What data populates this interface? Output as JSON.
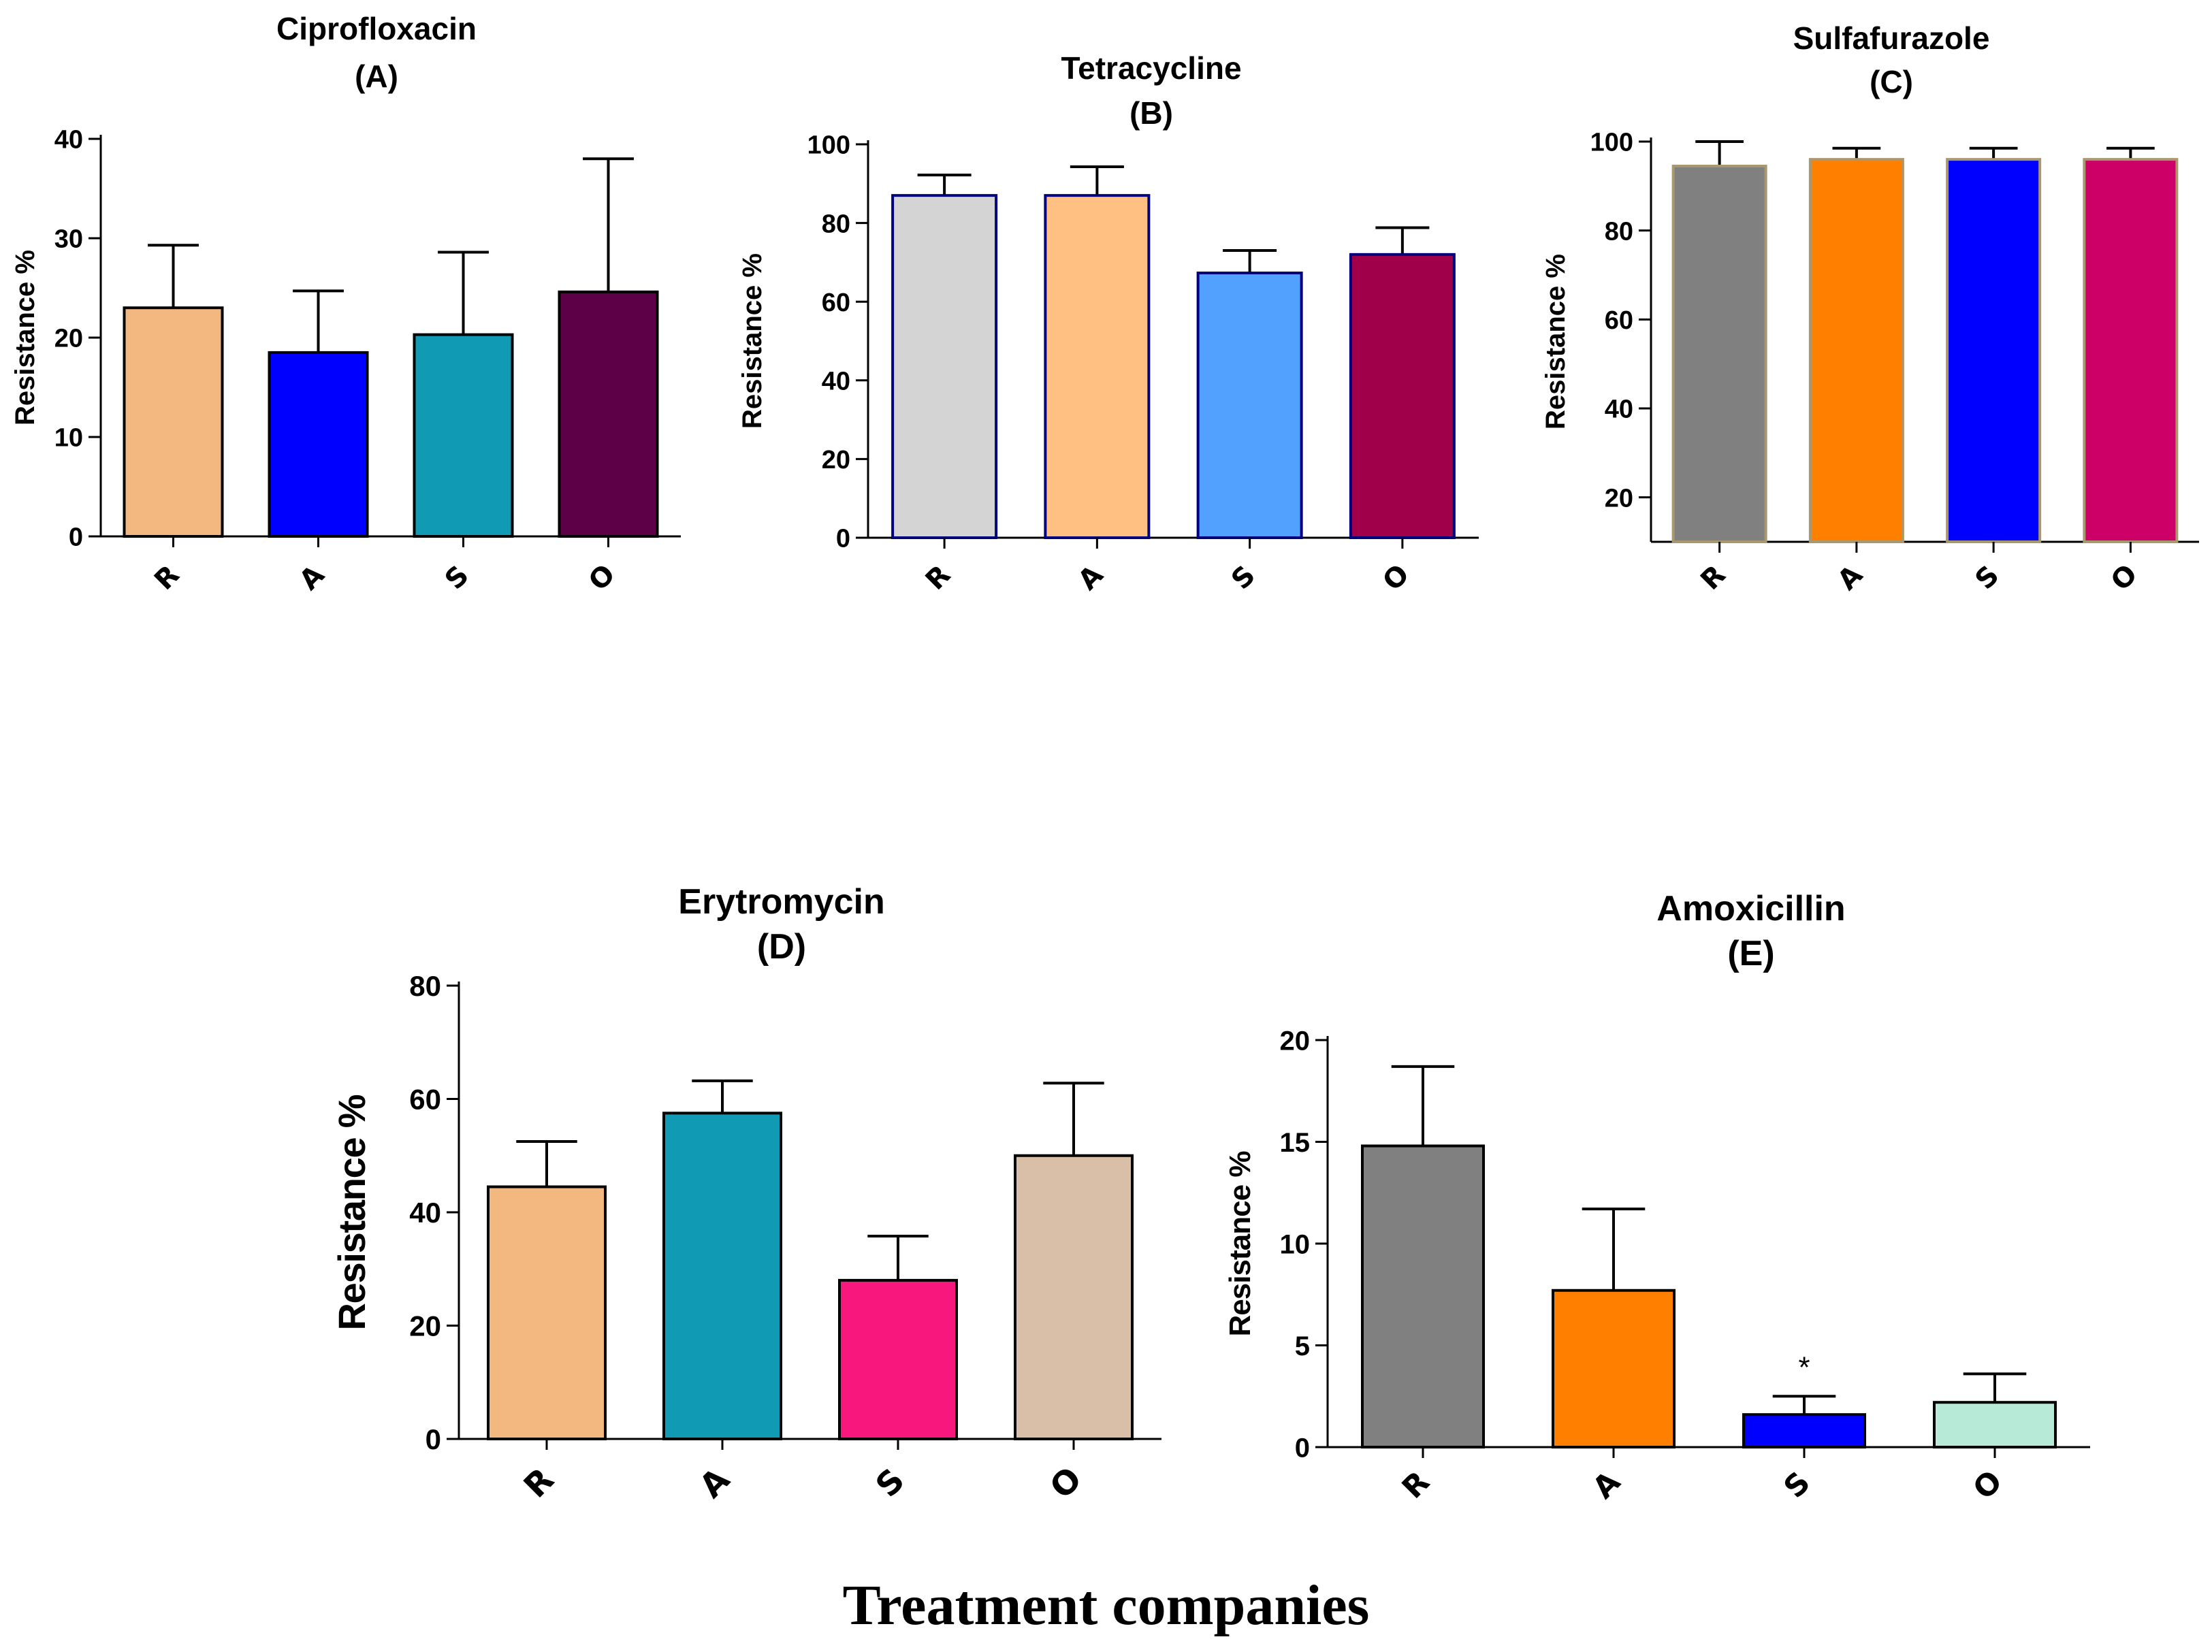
{
  "figure": {
    "xlabel": "Treatment companies"
  },
  "chart_data": [
    {
      "type": "bar",
      "title": "Ciprofloxacin",
      "subtitle": "(A)",
      "ylabel": "Resistance %",
      "xlabel": "",
      "categories": [
        "R",
        "A",
        "S",
        "O"
      ],
      "values": [
        23,
        18.5,
        20.3,
        24.6
      ],
      "errors": [
        6.3,
        6.2,
        8.3,
        13.4
      ],
      "colors": [
        "#F2B880",
        "#0000FF",
        "#119AB3",
        "#5E0048"
      ],
      "bar_stroke": "#000000",
      "ylim": [
        0,
        40
      ],
      "yticks": [
        0,
        10,
        20,
        30,
        40
      ],
      "annotations": []
    },
    {
      "type": "bar",
      "title": "Tetracycline",
      "subtitle": "(B)",
      "ylabel": "Resistance %",
      "xlabel": "",
      "categories": [
        "R",
        "A",
        "S",
        "O"
      ],
      "values": [
        87,
        87,
        67.3,
        72
      ],
      "errors": [
        5.2,
        7.3,
        5.7,
        6.8
      ],
      "colors": [
        "#D4D4D4",
        "#FFC082",
        "#52A0FF",
        "#A0004A"
      ],
      "bar_stroke": "#00007A",
      "ylim": [
        0,
        100
      ],
      "yticks": [
        0,
        20,
        40,
        60,
        80,
        100
      ],
      "annotations": []
    },
    {
      "type": "bar",
      "title": "Sulfafurazole",
      "subtitle": "(C)",
      "ylabel": "Resistance %",
      "xlabel": "",
      "categories": [
        "R",
        "A",
        "S",
        "O"
      ],
      "values": [
        94.5,
        96,
        96,
        96
      ],
      "errors": [
        5.5,
        2.5,
        2.5,
        2.5
      ],
      "colors": [
        "#808080",
        "#FF8000",
        "#0000FF",
        "#CC0066"
      ],
      "bar_stroke": "#A89870",
      "ylim": [
        10,
        100
      ],
      "yticks": [
        20,
        40,
        60,
        80,
        100
      ],
      "annotations": []
    },
    {
      "type": "bar",
      "title": "Erytromycin",
      "subtitle": "(D)",
      "ylabel": "Resistance %",
      "xlabel": "",
      "categories": [
        "R",
        "A",
        "S",
        "O"
      ],
      "values": [
        44.5,
        57.5,
        28,
        50
      ],
      "errors": [
        8,
        5.7,
        7.8,
        12.8
      ],
      "colors": [
        "#F2B880",
        "#119AB3",
        "#F7177D",
        "#D9BEA8"
      ],
      "bar_stroke": "#000000",
      "ylim": [
        0,
        80
      ],
      "yticks": [
        0,
        20,
        40,
        60,
        80
      ],
      "annotations": []
    },
    {
      "type": "bar",
      "title": "Amoxicillin",
      "subtitle": "(E)",
      "ylabel": "Resistance %",
      "xlabel": "",
      "categories": [
        "R",
        "A",
        "S",
        "O"
      ],
      "values": [
        14.8,
        7.7,
        1.6,
        2.2
      ],
      "errors": [
        3.9,
        4,
        0.9,
        1.4
      ],
      "colors": [
        "#808080",
        "#FF8000",
        "#0000FF",
        "#B8EAD8"
      ],
      "bar_stroke": "#000000",
      "ylim": [
        0,
        20
      ],
      "yticks": [
        0,
        5,
        10,
        15,
        20
      ],
      "annotations": [
        {
          "category": "S",
          "text": "*"
        }
      ]
    }
  ]
}
